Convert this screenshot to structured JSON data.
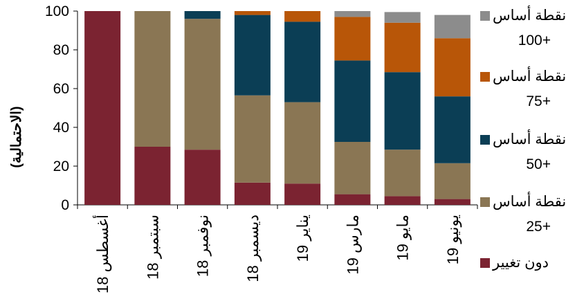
{
  "chart_data": {
    "type": "bar",
    "stacked": true,
    "ylabel": "(الاحتمالية)",
    "ylim": [
      0,
      100
    ],
    "yticks": [
      0,
      20,
      40,
      60,
      80,
      100
    ],
    "categories": [
      "أغسطس 18",
      "سبتمبر 18",
      "نوفمبر 18",
      "ديسمبر 18",
      "يناير 19",
      "مارس 19",
      "مايو 19",
      "يونيو 19"
    ],
    "series": [
      {
        "name": "دون تغيير",
        "color": "#7b2331",
        "values": [
          100,
          30,
          28.5,
          11.5,
          11,
          5.5,
          4.5,
          3
        ]
      },
      {
        "name": "+25 نقطة أساس",
        "color": "#8a7654",
        "values": [
          0,
          70,
          67.5,
          45,
          42,
          27,
          24,
          18.5
        ]
      },
      {
        "name": "+50 نقطة أساس",
        "color": "#0b3e55",
        "values": [
          0,
          0,
          4,
          41.5,
          41.5,
          42,
          40,
          34.5
        ]
      },
      {
        "name": "+75 نقطة أساس",
        "color": "#b85608",
        "values": [
          0,
          0,
          0,
          2,
          5.5,
          22.5,
          25.5,
          30
        ]
      },
      {
        "name": "+100 نقطة أساس",
        "color": "#8c8c8c",
        "values": [
          0,
          0,
          0,
          0,
          0,
          3,
          5.5,
          12
        ]
      }
    ],
    "legend": {
      "placement": "right",
      "entries": [
        {
          "line1": "نقطة أساس",
          "line2": "100+",
          "color": "#8c8c8c"
        },
        {
          "line1": "نقطة أساس",
          "line2": "75+",
          "color": "#b85608"
        },
        {
          "line1": "نقطة أساس",
          "line2": "50+",
          "color": "#0b3e55"
        },
        {
          "line1": "نقطة أساس",
          "line2": "25+",
          "color": "#8a7654"
        },
        {
          "line1": "دون تغيير",
          "line2": "",
          "color": "#7b2331"
        }
      ]
    }
  }
}
